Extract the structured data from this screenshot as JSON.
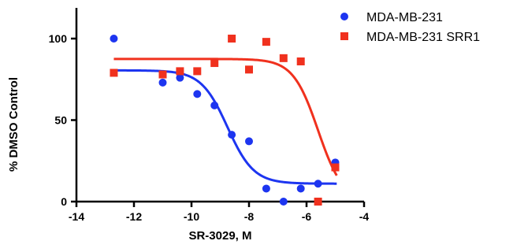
{
  "chart_data": {
    "type": "scatter",
    "title": "",
    "xlabel": "SR-3029, M",
    "ylabel": "% DMSO Control",
    "xlim": [
      -14,
      -4
    ],
    "ylim": [
      0,
      120
    ],
    "xticks": [
      -14,
      -12,
      -10,
      -8,
      -6,
      -4
    ],
    "yticks": [
      0,
      50,
      100
    ],
    "xtick_labels": [
      "-14",
      "-12",
      "-10",
      "-8",
      "-6",
      "-4"
    ],
    "ytick_labels": [
      "0",
      "50",
      "100"
    ],
    "grid": false,
    "legend_position": "top-right",
    "series": [
      {
        "name": "MDA-MB-231",
        "color": "#1d35f0",
        "marker": "circle",
        "points": [
          {
            "x": -12.7,
            "y": 100
          },
          {
            "x": -11.0,
            "y": 73
          },
          {
            "x": -10.4,
            "y": 76
          },
          {
            "x": -9.8,
            "y": 66
          },
          {
            "x": -9.2,
            "y": 59
          },
          {
            "x": -8.6,
            "y": 41
          },
          {
            "x": -8.0,
            "y": 37
          },
          {
            "x": -7.4,
            "y": 8
          },
          {
            "x": -6.8,
            "y": 0
          },
          {
            "x": -6.2,
            "y": 8
          },
          {
            "x": -5.6,
            "y": 11
          },
          {
            "x": -5.0,
            "y": 24
          }
        ],
        "fit": {
          "top": 80.5,
          "bottom": 11,
          "logIC50": -8.75,
          "hill": 0.95
        }
      },
      {
        "name": "MDA-MB-231 SRR1",
        "color": "#f0311e",
        "marker": "square",
        "points": [
          {
            "x": -12.7,
            "y": 79
          },
          {
            "x": -11.0,
            "y": 78
          },
          {
            "x": -10.4,
            "y": 80
          },
          {
            "x": -9.8,
            "y": 80
          },
          {
            "x": -9.2,
            "y": 85
          },
          {
            "x": -8.6,
            "y": 100
          },
          {
            "x": -8.0,
            "y": 81
          },
          {
            "x": -7.4,
            "y": 98
          },
          {
            "x": -6.8,
            "y": 88
          },
          {
            "x": -6.2,
            "y": 86
          },
          {
            "x": -5.6,
            "y": 0
          },
          {
            "x": -5.0,
            "y": 21
          }
        ],
        "fit": {
          "top": 87.5,
          "bottom": 0,
          "logIC50": -5.6,
          "hill": 1.0
        }
      }
    ]
  }
}
